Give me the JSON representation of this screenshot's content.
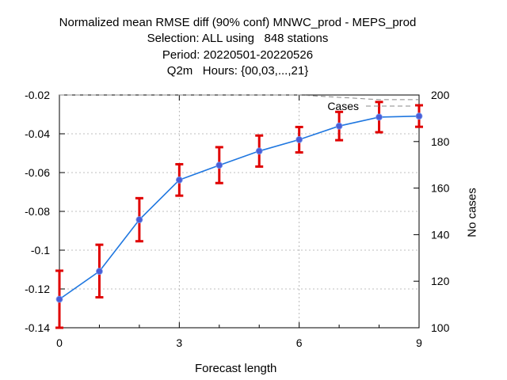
{
  "title_lines": [
    "Normalized mean RMSE diff (90% conf) MNWC_prod - MEPS_prod",
    "Selection: ALL using   848 stations",
    "Period: 20220501-20220526",
    "Q2m   Hours: {00,03,...,21}"
  ],
  "chart_data": {
    "type": "line",
    "xlabel": "Forecast length",
    "ylabel": "",
    "y2label": "No cases",
    "xlim": [
      0,
      9
    ],
    "ylim": [
      -0.14,
      -0.02
    ],
    "y2lim": [
      100,
      200
    ],
    "x_ticks": [
      "0",
      "3",
      "6",
      "9"
    ],
    "y_ticks": [
      "-0.14",
      "-0.12",
      "-0.1",
      "-0.08",
      "-0.06",
      "-0.04",
      "-0.02"
    ],
    "y2_ticks": [
      "100",
      "120",
      "140",
      "160",
      "180",
      "200"
    ],
    "grid": true,
    "series": [
      {
        "name": "",
        "color": "#1f77e0",
        "x": [
          0,
          1,
          2,
          3,
          4,
          5,
          6,
          7,
          8,
          9
        ],
        "y": [
          -0.1253,
          -0.1109,
          -0.0843,
          -0.0638,
          -0.0562,
          -0.0489,
          -0.043,
          -0.036,
          -0.0314,
          -0.0309
        ],
        "err_low": [
          -0.14,
          -0.1243,
          -0.0954,
          -0.0719,
          -0.0654,
          -0.0569,
          -0.0496,
          -0.0433,
          -0.0392,
          -0.0364
        ],
        "err_high": [
          -0.1106,
          -0.0972,
          -0.0732,
          -0.0557,
          -0.0469,
          -0.0409,
          -0.0365,
          -0.0287,
          -0.0236,
          -0.0253
        ],
        "err_color": "#e00000"
      },
      {
        "name": "Cases",
        "axis": "y2",
        "color": "#888888",
        "x": [
          0,
          1,
          2,
          3,
          4,
          5,
          6,
          7,
          8,
          9
        ],
        "y": [
          200,
          200,
          200,
          200,
          200,
          200,
          200,
          199,
          198,
          198
        ]
      }
    ]
  }
}
